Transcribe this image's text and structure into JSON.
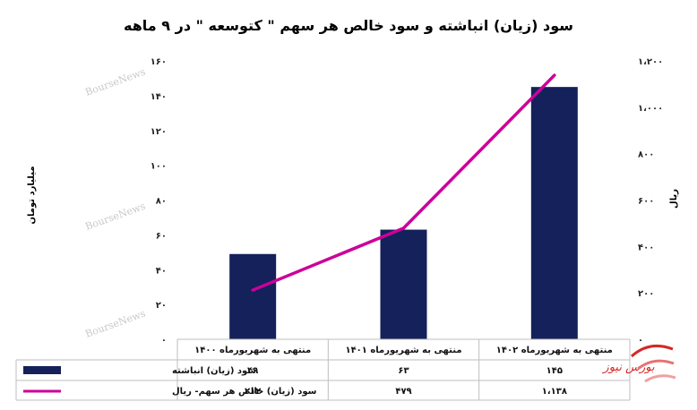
{
  "chart_data": {
    "type": "bar",
    "title": "سود (زیان) انباشته و سود خالص هر سهم \" کتوسعه \" در ۹ ماهه",
    "categories": [
      "منتهی به شهریورماه ۱۴۰۰",
      "منتهی به شهریورماه ۱۴۰۱",
      "منتهی به شهریورماه ۱۴۰۲"
    ],
    "series": [
      {
        "name": "سود (زیان) انباشته",
        "type": "bar",
        "axis": "left",
        "values": [
          49,
          63,
          145
        ],
        "value_labels": [
          "۴۹",
          "۶۳",
          "۱۴۵"
        ],
        "color": "#14215a"
      },
      {
        "name": "سود (زیان) خالص هر سهم- ریال",
        "type": "line",
        "axis": "right",
        "values": [
          212,
          479,
          1138
        ],
        "value_labels": [
          "۲۱۲",
          "۴۷۹",
          "۱،۱۳۸"
        ],
        "color": "#cc0099"
      }
    ],
    "ylabel_left": "میلیارد تومان",
    "ylabel_right": "ریال",
    "ylim_left": [
      0,
      160
    ],
    "ylim_right": [
      0,
      1200
    ],
    "yticks_left": [
      "۰",
      "۲۰",
      "۴۰",
      "۶۰",
      "۸۰",
      "۱۰۰",
      "۱۲۰",
      "۱۴۰",
      "۱۶۰"
    ],
    "yticks_right": [
      "۰",
      "۲۰۰",
      "۴۰۰",
      "۶۰۰",
      "۸۰۰",
      "۱،۰۰۰",
      "۱،۲۰۰"
    ],
    "grid": false,
    "legend": "data-table"
  },
  "watermark_text": "BourseNews",
  "logo_text": "بورس نیوز",
  "colors": {
    "plot_background": "#ffffff",
    "table_border": "#bfbfbf",
    "logo": "#d62828"
  }
}
